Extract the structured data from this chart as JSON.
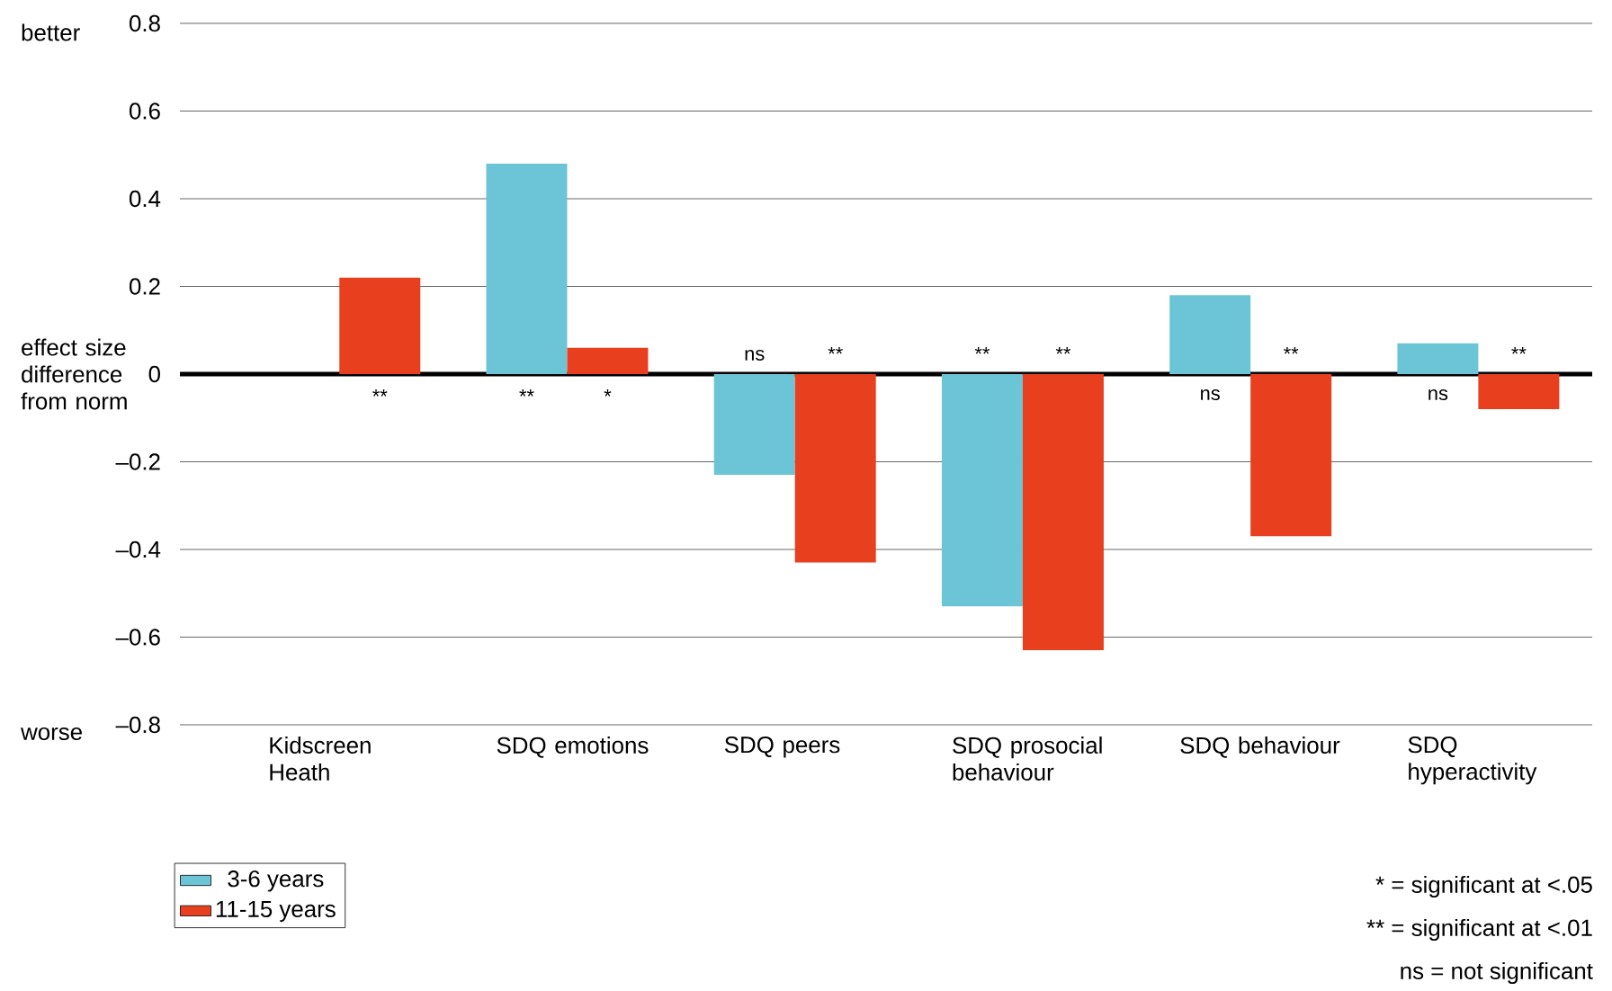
{
  "chart_data": {
    "type": "bar",
    "ylabel": "effect size difference from norm",
    "categories": [
      "Kidscreen Heath",
      "SDQ emotions",
      "SDQ peers",
      "SDQ prosocial behaviour",
      "SDQ behaviour",
      "SDQ hyperactivity"
    ],
    "series": [
      {
        "name": "3-6 years",
        "color": "#6cc5d6",
        "values": [
          null,
          0.48,
          -0.23,
          -0.53,
          0.18,
          0.07
        ],
        "value_labels": [
          null,
          "**",
          "ns",
          "**",
          "ns",
          "ns"
        ]
      },
      {
        "name": "11-15 years",
        "color": "#e8401f",
        "values": [
          0.22,
          0.06,
          -0.43,
          -0.63,
          -0.37,
          -0.08
        ],
        "value_labels": [
          "**",
          "*",
          "**",
          "**",
          "**",
          "**"
        ]
      }
    ],
    "ylim": [
      -0.8,
      0.8
    ],
    "yticks": [
      {
        "value": -0.8,
        "label": "–0.8"
      },
      {
        "value": -0.6,
        "label": "–0.6"
      },
      {
        "value": -0.4,
        "label": "–0.4"
      },
      {
        "value": -0.2,
        "label": "–0.2"
      },
      0,
      0.2,
      0.4,
      0.6,
      0.8
    ],
    "grid": "y",
    "legend": "bottom left",
    "annotations": [
      "better",
      "worse",
      "* = significant at <.05",
      "** = significant at <.01",
      "ns = not significant"
    ]
  }
}
